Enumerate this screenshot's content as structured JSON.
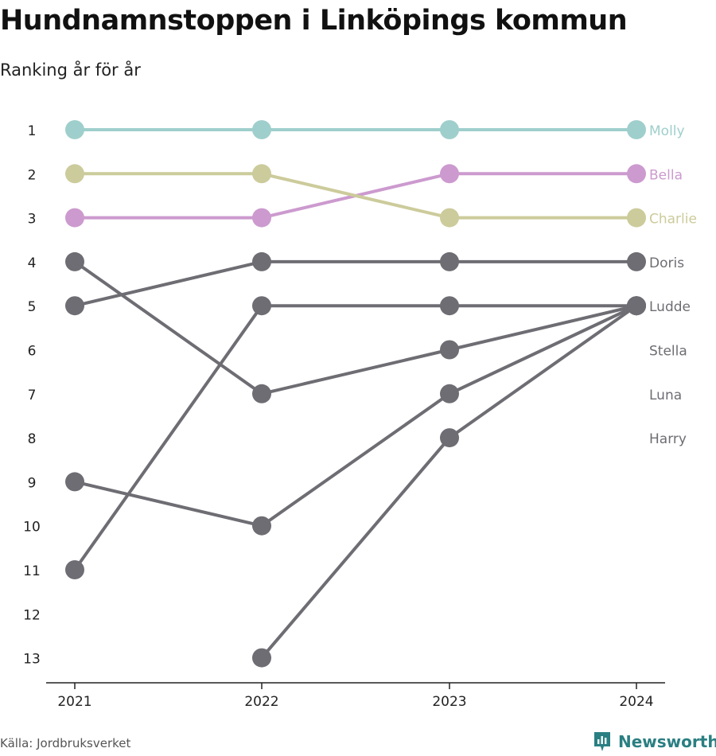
{
  "title": "Hundnamnstoppen i Linköpings kommun",
  "subtitle": "Ranking år för år",
  "source": "Källa: Jordbruksverket",
  "brand": "Newsworthy",
  "colors": {
    "Molly": "#9fcfcc",
    "Bella": "#cc9acf",
    "Charlie": "#cccb9b",
    "other": "#6e6d73",
    "axis": "#222222",
    "tick_text": "#222222"
  },
  "chart_data": {
    "type": "line",
    "title": "Hundnamnstoppen i Linköpings kommun",
    "subtitle": "Ranking år för år",
    "x": [
      "2021",
      "2022",
      "2023",
      "2024"
    ],
    "y_ticks": [
      "1",
      "2",
      "3",
      "4",
      "5",
      "6",
      "7",
      "8",
      "9",
      "10",
      "11",
      "12",
      "13"
    ],
    "ylim": [
      1,
      13
    ],
    "y_reversed": true,
    "grid": false,
    "series": [
      {
        "name": "Molly",
        "values": [
          1,
          1,
          1,
          1
        ]
      },
      {
        "name": "Bella",
        "values": [
          3,
          3,
          2,
          2
        ]
      },
      {
        "name": "Charlie",
        "values": [
          2,
          2,
          3,
          3
        ]
      },
      {
        "name": "Doris",
        "values": [
          5,
          4,
          4,
          4
        ]
      },
      {
        "name": "Ludde",
        "values": [
          11,
          5,
          5,
          5
        ]
      },
      {
        "name": "Stella",
        "values": [
          9,
          10,
          7,
          5
        ]
      },
      {
        "name": "Luna",
        "values": [
          4,
          7,
          6,
          5
        ]
      },
      {
        "name": "Harry",
        "values": [
          null,
          13,
          8,
          5
        ]
      }
    ],
    "end_labels": [
      {
        "name": "Molly",
        "rank": 1
      },
      {
        "name": "Bella",
        "rank": 2
      },
      {
        "name": "Charlie",
        "rank": 3
      },
      {
        "name": "Doris",
        "rank": 4
      },
      {
        "name": "Ludde",
        "rank": 5
      },
      {
        "name": "Stella",
        "rank": 6
      },
      {
        "name": "Luna",
        "rank": 7
      },
      {
        "name": "Harry",
        "rank": 8
      }
    ]
  }
}
